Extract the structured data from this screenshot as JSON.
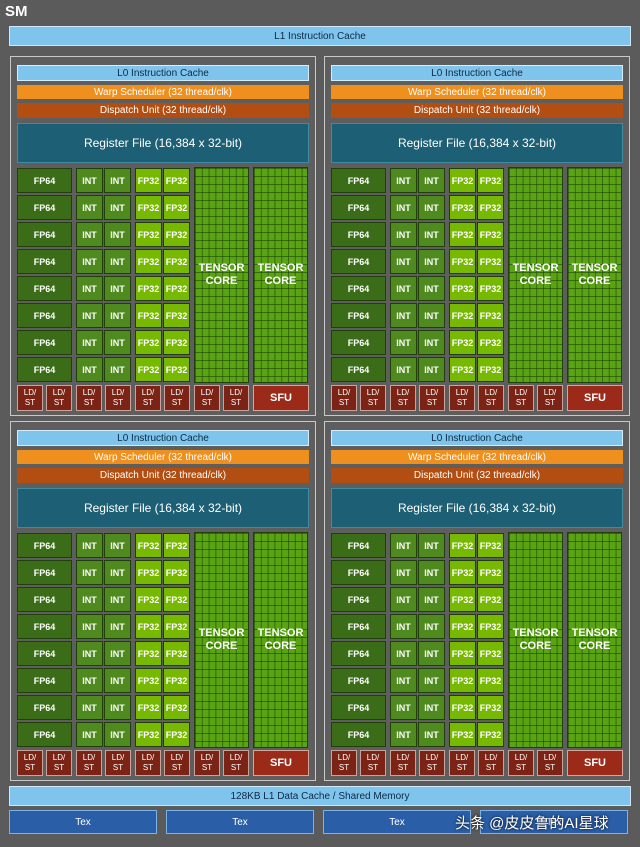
{
  "sm_title": "SM",
  "l1_instruction_cache": "L1 Instruction Cache",
  "l1_data_cache": "128KB L1 Data Cache / Shared Memory",
  "tex_units": [
    "Tex",
    "Tex",
    "Tex",
    "Tex"
  ],
  "watermark": "头条 @皮皮鲁的AI星球",
  "processing_block": {
    "l0_cache": "L0 Instruction Cache",
    "warp_scheduler": "Warp Scheduler (32 thread/clk)",
    "dispatch_unit": "Dispatch Unit (32 thread/clk)",
    "register_file": "Register File (16,384 x 32-bit)",
    "fp64_label": "FP64",
    "int_label": "INT",
    "fp32_label": "FP32",
    "tensor_line1": "TENSOR",
    "tensor_line2": "CORE",
    "ldst_line1": "LD/",
    "ldst_line2": "ST",
    "sfu_label": "SFU",
    "core_rows": 8,
    "ldst_units": 8
  },
  "block_count": 4,
  "colors": {
    "background": "#5b5b5b",
    "cache": "#7ec4ec",
    "warp": "#ef8f1d",
    "dispatch": "#b34e12",
    "register": "#1d5f74",
    "fp64": "#3b6d19",
    "int": "#4f8a1e",
    "fp32": "#76b900",
    "tensor": "#5aa312",
    "ldst": "#7b2416",
    "sfu": "#9b2a19",
    "tex": "#2a5fa8"
  }
}
